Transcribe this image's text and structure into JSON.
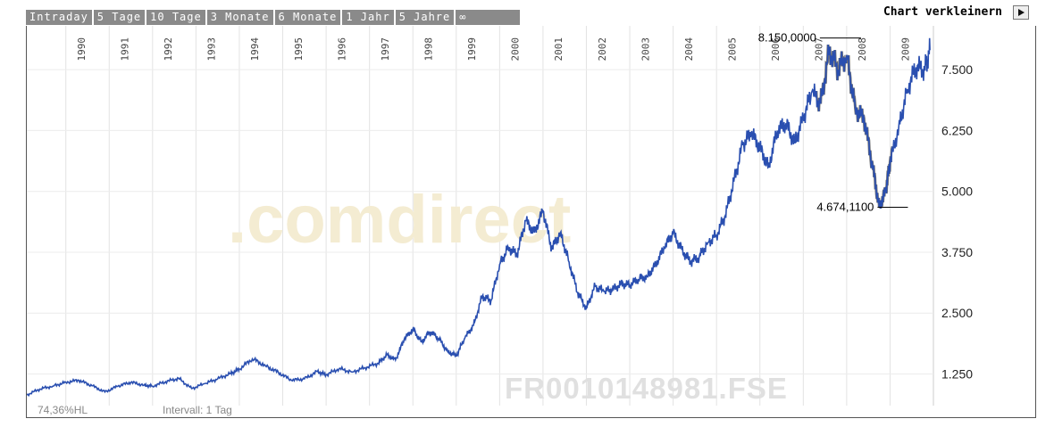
{
  "tabs": {
    "items": [
      "Intraday",
      "5 Tage",
      "10 Tage",
      "3 Monate",
      "6 Monate",
      "1 Jahr",
      "5 Jahre",
      "∞"
    ]
  },
  "header": {
    "shrink_label": "Chart verkleinern",
    "shrink_icon": "play-right-icon"
  },
  "footer": {
    "scale_label": "74,36%HL",
    "interval_label": "Intervall: 1 Tag"
  },
  "watermark": {
    "brand": ".comdirect",
    "symbol": "FR0010148981.FSE"
  },
  "chart_data": {
    "type": "line",
    "color": "#2a4fb0",
    "x_tick_labels": [
      "1990",
      "1991",
      "1992",
      "1993",
      "1994",
      "1995",
      "1996",
      "1997",
      "1998",
      "1999",
      "2000",
      "2001",
      "2002",
      "2003",
      "2004",
      "2005",
      "2006",
      "2007",
      "2008",
      "2009"
    ],
    "y_tick_labels": [
      "1.250",
      "2.500",
      "3.750",
      "5.000",
      "6.250",
      "7.500"
    ],
    "y_ticks": [
      1250,
      2500,
      3750,
      5000,
      6250,
      7500
    ],
    "xlim": [
      1989.1,
      2010.0
    ],
    "ylim": [
      600,
      8400
    ],
    "grid": true,
    "annotations": [
      {
        "label": "8.150,0000",
        "x": 2008.0,
        "y": 8150
      },
      {
        "label": "4.674,1100",
        "x": 2009.0,
        "y": 4674.11
      }
    ],
    "x": [
      1989.1,
      1989.4,
      1989.7,
      1990.0,
      1990.3,
      1990.6,
      1990.9,
      1991.2,
      1991.5,
      1991.8,
      1992.0,
      1992.3,
      1992.6,
      1992.9,
      1993.2,
      1993.5,
      1993.8,
      1994.0,
      1994.3,
      1994.6,
      1994.9,
      1995.2,
      1995.5,
      1995.8,
      1996.0,
      1996.3,
      1996.6,
      1996.9,
      1997.2,
      1997.4,
      1997.6,
      1997.8,
      1998.0,
      1998.2,
      1998.4,
      1998.6,
      1998.8,
      1999.0,
      1999.2,
      1999.4,
      1999.6,
      1999.8,
      2000.0,
      2000.2,
      2000.4,
      2000.6,
      2000.8,
      2001.0,
      2001.2,
      2001.4,
      2001.6,
      2001.8,
      2002.0,
      2002.2,
      2002.4,
      2002.6,
      2002.8,
      2003.0,
      2003.2,
      2003.4,
      2003.6,
      2003.8,
      2004.0,
      2004.2,
      2004.4,
      2004.6,
      2004.8,
      2005.0,
      2005.2,
      2005.4,
      2005.6,
      2005.8,
      2006.0,
      2006.2,
      2006.4,
      2006.6,
      2006.8,
      2007.0,
      2007.2,
      2007.4,
      2007.6,
      2007.8,
      2008.0,
      2008.2,
      2008.4,
      2008.6,
      2008.75,
      2008.9,
      2009.0,
      2009.2,
      2009.4,
      2009.6,
      2009.8,
      2009.92
    ],
    "values": [
      820,
      940,
      1000,
      1080,
      1120,
      1010,
      880,
      1000,
      1080,
      1020,
      1000,
      1090,
      1160,
      950,
      1050,
      1150,
      1260,
      1350,
      1560,
      1420,
      1280,
      1120,
      1150,
      1300,
      1230,
      1360,
      1290,
      1380,
      1470,
      1640,
      1540,
      1960,
      2170,
      1910,
      2120,
      1980,
      1710,
      1620,
      1990,
      2250,
      2850,
      2750,
      3500,
      3850,
      3700,
      4400,
      4150,
      4600,
      3820,
      4150,
      3550,
      2920,
      2600,
      3050,
      2950,
      2980,
      3100,
      3080,
      3200,
      3250,
      3500,
      3850,
      4150,
      3800,
      3550,
      3650,
      3950,
      4100,
      4500,
      5200,
      5950,
      6200,
      5900,
      5500,
      6250,
      6400,
      6000,
      6500,
      7050,
      6800,
      7900,
      7500,
      7800,
      6700,
      6500,
      5500,
      4680,
      5000,
      5600,
      6300,
      7100,
      7550,
      7500,
      7900
    ]
  }
}
